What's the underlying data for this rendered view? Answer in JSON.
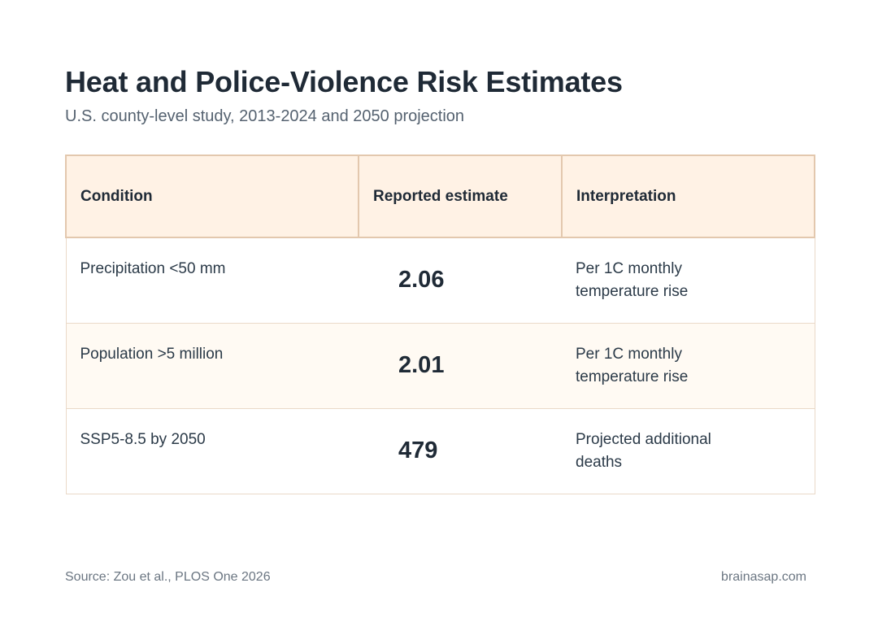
{
  "title": "Heat and Police-Violence Risk Estimates",
  "subtitle": "U.S. county-level study, 2013-2024 and 2050 projection",
  "table": {
    "headers": [
      "Condition",
      "Reported estimate",
      "Interpretation"
    ],
    "rows": [
      {
        "condition": "Precipitation <50 mm",
        "estimate": "2.06",
        "interpretation": "Per 1C monthly temperature rise"
      },
      {
        "condition": "Population >5 million",
        "estimate": "2.01",
        "interpretation": "Per 1C monthly temperature rise"
      },
      {
        "condition": "SSP5-8.5 by 2050",
        "estimate": "479",
        "interpretation": "Projected additional deaths"
      }
    ]
  },
  "footer": {
    "source": "Source: Zou et al., PLOS One 2026",
    "brand": "brainasap.com"
  },
  "colors": {
    "header_background": "#fff2e5",
    "header_border": "#e3c8ae",
    "alt_row_background": "#fffaf3",
    "title_text": "#1f2a36"
  }
}
